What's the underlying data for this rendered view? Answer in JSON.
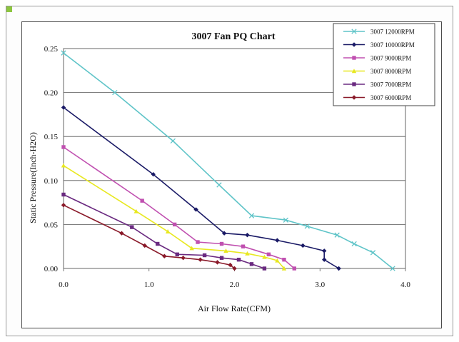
{
  "chart_data": {
    "type": "line",
    "title": "3007  Fan PQ Chart",
    "xlabel": "Air Flow Rate(CFM)",
    "ylabel": "Static Pressure(Inch-H2O)",
    "xlim": [
      0,
      4.0
    ],
    "ylim": [
      0,
      0.25
    ],
    "x_ticks": [
      "0.0",
      "1.0",
      "2.0",
      "3.0",
      "4.0"
    ],
    "y_ticks": [
      "0.00",
      "0.05",
      "0.10",
      "0.15",
      "0.20",
      "0.25"
    ],
    "grid": "horizontal",
    "legend_position": "top-right",
    "series": [
      {
        "name": "3007  12000RPM",
        "color": "#5fc4c8",
        "marker": "x",
        "points": [
          [
            0,
            0.245
          ],
          [
            0.6,
            0.2
          ],
          [
            1.28,
            0.145
          ],
          [
            1.82,
            0.095
          ],
          [
            2.2,
            0.06
          ],
          [
            2.6,
            0.055
          ],
          [
            2.85,
            0.048
          ],
          [
            3.2,
            0.038
          ],
          [
            3.4,
            0.028
          ],
          [
            3.62,
            0.018
          ],
          [
            3.85,
            0.0
          ]
        ]
      },
      {
        "name": "3007  10000RPM",
        "color": "#1a1a66",
        "marker": "diamond",
        "points": [
          [
            0,
            0.183
          ],
          [
            1.05,
            0.107
          ],
          [
            1.55,
            0.067
          ],
          [
            1.88,
            0.04
          ],
          [
            2.15,
            0.038
          ],
          [
            2.5,
            0.032
          ],
          [
            2.8,
            0.026
          ],
          [
            3.05,
            0.02
          ],
          [
            3.05,
            0.01
          ],
          [
            3.22,
            0.0
          ]
        ]
      },
      {
        "name": "3007  9000RPM",
        "color": "#c050b0",
        "marker": "square",
        "points": [
          [
            0,
            0.138
          ],
          [
            0.92,
            0.077
          ],
          [
            1.3,
            0.05
          ],
          [
            1.57,
            0.03
          ],
          [
            1.85,
            0.028
          ],
          [
            2.1,
            0.025
          ],
          [
            2.4,
            0.016
          ],
          [
            2.58,
            0.01
          ],
          [
            2.7,
            0.0
          ]
        ]
      },
      {
        "name": "3007  8000RPM",
        "color": "#e8e820",
        "marker": "triangle",
        "points": [
          [
            0,
            0.117
          ],
          [
            0.85,
            0.065
          ],
          [
            1.22,
            0.042
          ],
          [
            1.5,
            0.023
          ],
          [
            1.9,
            0.02
          ],
          [
            2.15,
            0.017
          ],
          [
            2.35,
            0.013
          ],
          [
            2.5,
            0.009
          ],
          [
            2.58,
            0.0
          ]
        ]
      },
      {
        "name": "3007  7000RPM",
        "color": "#6a2a80",
        "marker": "square",
        "points": [
          [
            0,
            0.084
          ],
          [
            0.8,
            0.047
          ],
          [
            1.1,
            0.028
          ],
          [
            1.33,
            0.016
          ],
          [
            1.65,
            0.015
          ],
          [
            1.85,
            0.012
          ],
          [
            2.05,
            0.01
          ],
          [
            2.2,
            0.005
          ],
          [
            2.35,
            0.0
          ]
        ]
      },
      {
        "name": "3007  6000RPM",
        "color": "#8a1a2a",
        "marker": "diamond",
        "points": [
          [
            0,
            0.072
          ],
          [
            0.68,
            0.04
          ],
          [
            0.95,
            0.026
          ],
          [
            1.18,
            0.014
          ],
          [
            1.4,
            0.012
          ],
          [
            1.6,
            0.01
          ],
          [
            1.8,
            0.007
          ],
          [
            1.95,
            0.004
          ],
          [
            2.0,
            0.0
          ]
        ]
      }
    ]
  }
}
